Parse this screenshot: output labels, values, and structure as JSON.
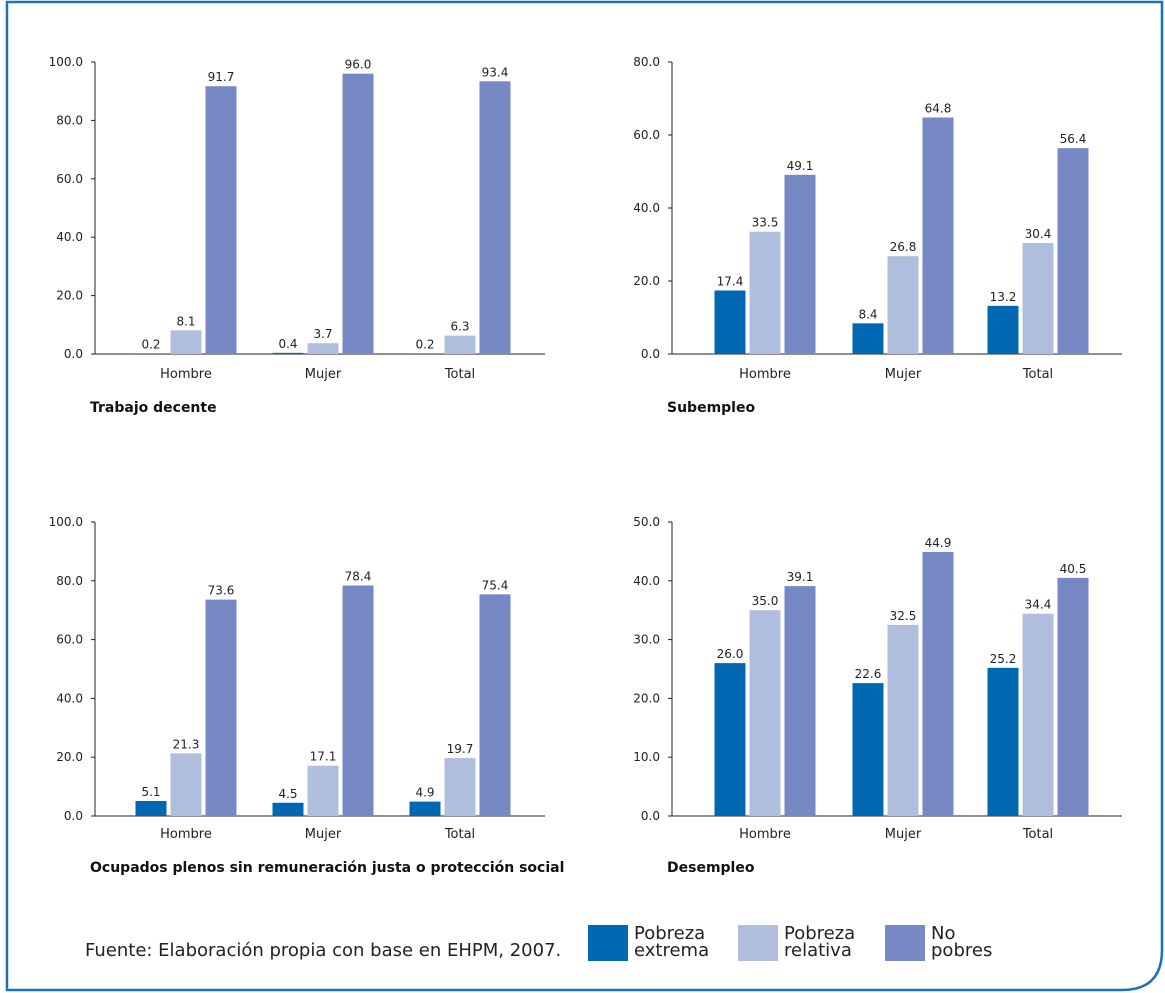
{
  "colors": {
    "frame": "#1a73b8",
    "series": [
      "#0068b3",
      "#b0bede",
      "#7689c4"
    ],
    "axis": "#222222"
  },
  "source": "Fuente: Elaboración propia con base en EHPM, 2007.",
  "legend": [
    {
      "label": "Pobreza extrema"
    },
    {
      "label": "Pobreza relativa"
    },
    {
      "label": "No pobres"
    }
  ],
  "chart_data": [
    {
      "type": "bar",
      "title": "Trabajo decente",
      "categories": [
        "Hombre",
        "Mujer",
        "Total"
      ],
      "ylim": [
        0,
        100
      ],
      "yticks": [
        "0.0",
        "20.0",
        "40.0",
        "60.0",
        "80.0",
        "100.0"
      ],
      "series": [
        {
          "name": "Pobreza extrema",
          "values": [
            0.2,
            0.4,
            0.2
          ],
          "labels": [
            "0.2",
            "0.4",
            "0.2"
          ]
        },
        {
          "name": "Pobreza relativa",
          "values": [
            8.1,
            3.7,
            6.3
          ],
          "labels": [
            "8.1",
            "3.7",
            "6.3"
          ]
        },
        {
          "name": "No pobres",
          "values": [
            91.7,
            96.0,
            93.4
          ],
          "labels": [
            "91.7",
            "96.0",
            "93.4"
          ]
        }
      ]
    },
    {
      "type": "bar",
      "title": "Subempleo",
      "categories": [
        "Hombre",
        "Mujer",
        "Total"
      ],
      "ylim": [
        0,
        80
      ],
      "yticks": [
        "0.0",
        "20.0",
        "40.0",
        "60.0",
        "80.0"
      ],
      "series": [
        {
          "name": "Pobreza extrema",
          "values": [
            17.4,
            8.4,
            13.2
          ],
          "labels": [
            "17.4",
            "8.4",
            "13.2"
          ]
        },
        {
          "name": "Pobreza relativa",
          "values": [
            33.5,
            26.8,
            30.4
          ],
          "labels": [
            "33.5",
            "26.8",
            "30.4"
          ]
        },
        {
          "name": "No pobres",
          "values": [
            49.1,
            64.8,
            56.4
          ],
          "labels": [
            "49.1",
            "64.8",
            "56.4"
          ]
        }
      ]
    },
    {
      "type": "bar",
      "title": "Ocupados plenos sin remuneración justa o protección social",
      "categories": [
        "Hombre",
        "Mujer",
        "Total"
      ],
      "ylim": [
        0,
        100
      ],
      "yticks": [
        "0.0",
        "20.0",
        "40.0",
        "60.0",
        "80.0",
        "100.0"
      ],
      "series": [
        {
          "name": "Pobreza extrema",
          "values": [
            5.1,
            4.5,
            4.9
          ],
          "labels": [
            "5.1",
            "4.5",
            "4.9"
          ]
        },
        {
          "name": "Pobreza relativa",
          "values": [
            21.3,
            17.1,
            19.7
          ],
          "labels": [
            "21.3",
            "17.1",
            "19.7"
          ]
        },
        {
          "name": "No pobres",
          "values": [
            73.6,
            78.4,
            75.4
          ],
          "labels": [
            "73.6",
            "78.4",
            "75.4"
          ]
        }
      ]
    },
    {
      "type": "bar",
      "title": "Desempleo",
      "categories": [
        "Hombre",
        "Mujer",
        "Total"
      ],
      "ylim": [
        0,
        50
      ],
      "yticks": [
        "0.0",
        "10.0",
        "20.0",
        "30.0",
        "40.0",
        "50.0"
      ],
      "series": [
        {
          "name": "Pobreza extrema",
          "values": [
            26.0,
            22.6,
            25.2
          ],
          "labels": [
            "26.0",
            "22.6",
            "25.2"
          ]
        },
        {
          "name": "Pobreza relativa",
          "values": [
            35.0,
            32.5,
            34.4
          ],
          "labels": [
            "35.0",
            "32.5",
            "34.4"
          ]
        },
        {
          "name": "No pobres",
          "values": [
            39.1,
            44.9,
            40.5
          ],
          "labels": [
            "39.1",
            "44.9",
            "40.5"
          ]
        }
      ]
    }
  ]
}
